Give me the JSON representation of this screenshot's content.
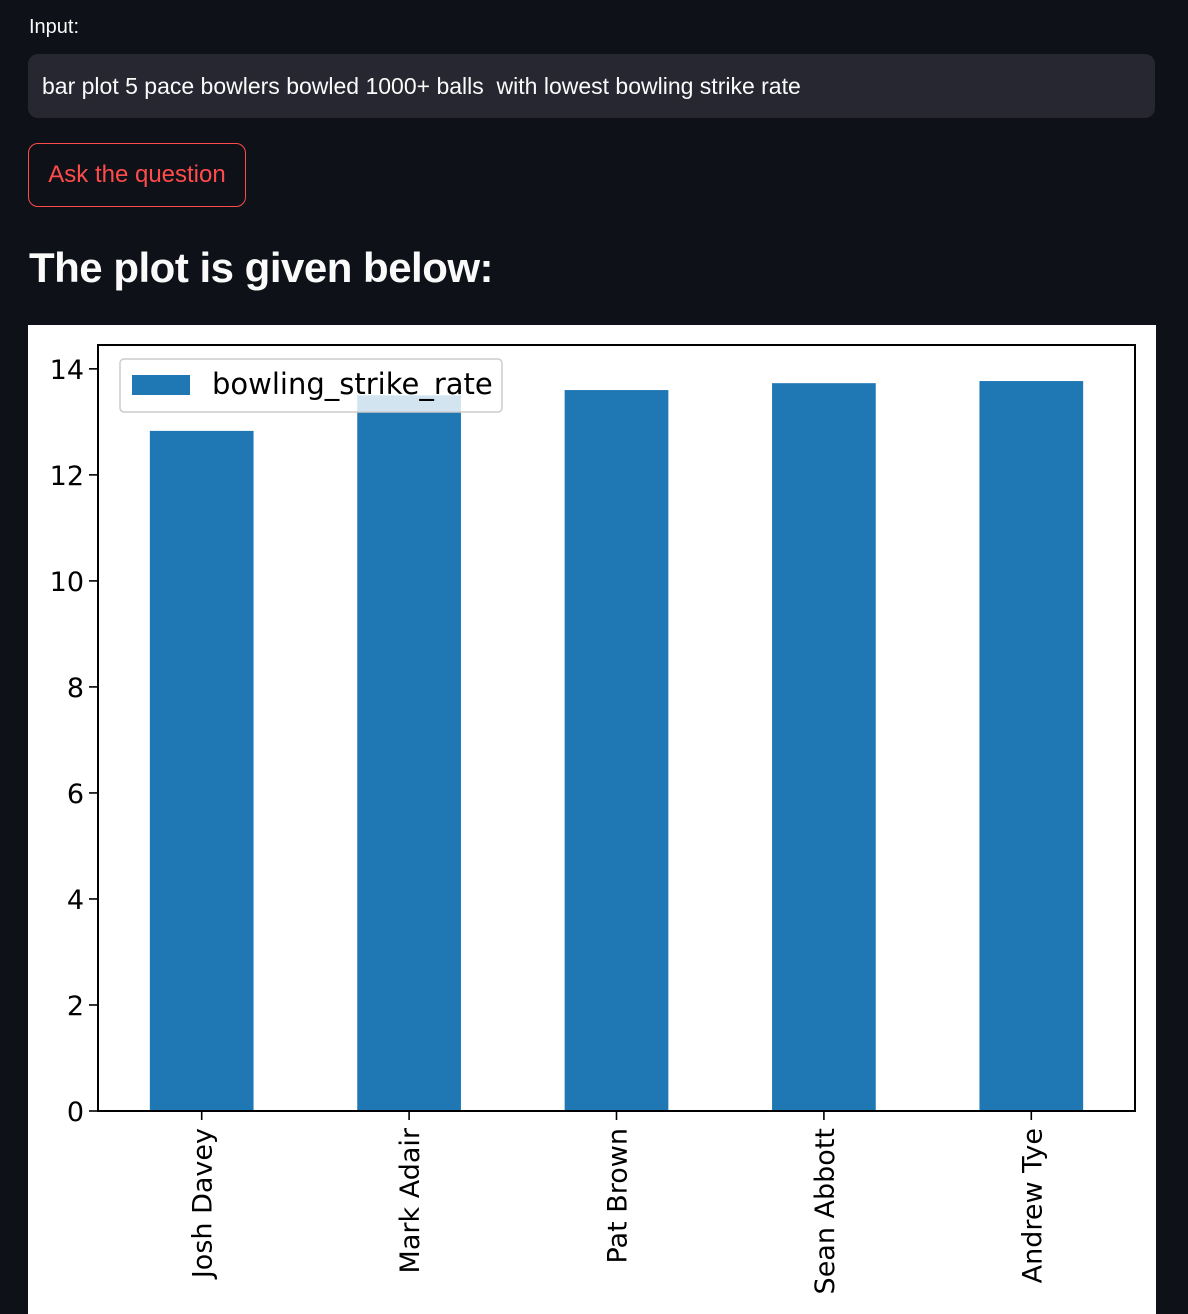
{
  "input": {
    "label": "Input:",
    "value": "bar plot 5 pace bowlers bowled 1000+ balls  with lowest bowling strike rate"
  },
  "ask_button": {
    "label": "Ask the question"
  },
  "plot_heading": "The plot is given below:",
  "colors": {
    "background": "#0e1117",
    "input_bg": "#262730",
    "accent": "#ff4b4b",
    "bar": "#1f77b4"
  },
  "chart_data": {
    "type": "bar",
    "title": "",
    "xlabel": "",
    "ylabel": "",
    "categories": [
      "Josh Davey",
      "Mark Adair",
      "Pat Brown",
      "Sean Abbott",
      "Andrew Tye"
    ],
    "series": [
      {
        "name": "bowling_strike_rate",
        "values": [
          12.83,
          13.5,
          13.6,
          13.73,
          13.77
        ]
      }
    ],
    "ylim": [
      0,
      14.45
    ],
    "yticks": [
      "0",
      "2",
      "4",
      "6",
      "8",
      "10",
      "12",
      "14"
    ],
    "legend": "top-left",
    "grid": false,
    "xtick_rotation": "vertical"
  }
}
